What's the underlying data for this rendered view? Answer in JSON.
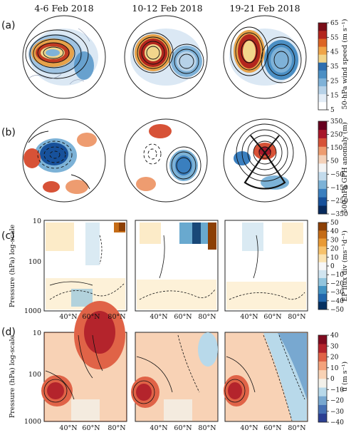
{
  "figure": {
    "column_titles": [
      "4-6 Feb 2018",
      "10-12 Feb 2018",
      "19-21 Feb 2018"
    ],
    "row_labels": [
      "(a)",
      "(b)",
      "(c)",
      "(d)"
    ],
    "pressure_axis_label": "Pressure (hPa) log-scale",
    "pressure_ticks": [
      "10",
      "100",
      "1000"
    ],
    "lat_ticks": [
      "40°N",
      "60°N",
      "80°N"
    ]
  },
  "colorbars": {
    "a": {
      "label": "50-hPa wind speed (m s⁻¹)",
      "ticks": [
        "65",
        "55",
        "45",
        "35",
        "25",
        "15",
        "5"
      ],
      "colors": [
        "#ffffff",
        "#e3edf7",
        "#b7d2e8",
        "#7fb2d8",
        "#4b8fc4",
        "#2e6eaf",
        "#f2d58a",
        "#f0a548",
        "#dc6424",
        "#b3261e",
        "#7a0d17"
      ]
    },
    "b": {
      "label": "500-hPa GPH anomaly (m)",
      "ticks": [
        "350",
        "250",
        "150",
        "50",
        "−50",
        "−150",
        "−250",
        "−350"
      ],
      "colors": [
        "#082a5c",
        "#17519b",
        "#3a7fbf",
        "#7cb2d7",
        "#c3dbec",
        "#f4f4f4",
        "#f4d1b9",
        "#ee9c70",
        "#d75237",
        "#a8172a",
        "#67001f"
      ]
    },
    "c": {
      "label": "EP flux div (ms⁻¹d⁻¹)",
      "ticks": [
        "50",
        "40",
        "30",
        "20",
        "10",
        "0",
        "−10",
        "−20",
        "−30",
        "−40",
        "−50"
      ],
      "colors": [
        "#053061",
        "#2166ac",
        "#4393c3",
        "#92c5de",
        "#d1e5f0",
        "#f7f7f7",
        "#fbe3b1",
        "#f7c26b",
        "#e99a34",
        "#c56c16",
        "#8c3f05"
      ]
    },
    "d": {
      "label": "ū (m s⁻¹)",
      "ticks": [
        "40",
        "30",
        "20",
        "10",
        "0",
        "−10",
        "−20",
        "−30",
        "−40"
      ],
      "colors": [
        "#2c3f92",
        "#4670b3",
        "#78a8d0",
        "#b8d9ea",
        "#f3f1ea",
        "#f8d2b5",
        "#f3a27c",
        "#e06347",
        "#b4242c",
        "#7f0b1f"
      ]
    }
  }
}
